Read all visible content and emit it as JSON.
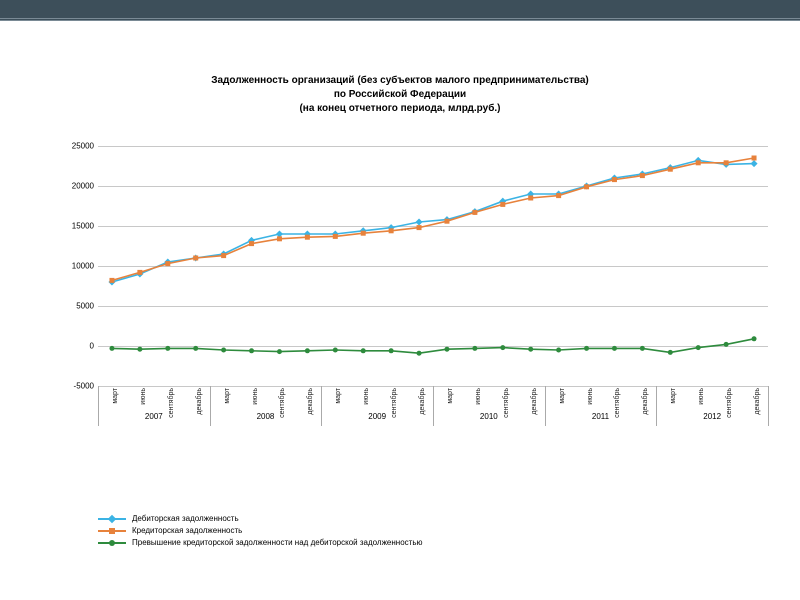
{
  "chart": {
    "type": "line",
    "title_line1": "Задолженность организаций (без субъектов малого предпринимательства)",
    "title_line2": "по Российской Федерации",
    "title_line3": "(на конец отчетного периода, млрд.руб.)",
    "title_fontsize": 10,
    "background_color": "#ffffff",
    "grid_color": "#c8c8c8",
    "ylim": [
      -5000,
      25000
    ],
    "ytick_step": 5000,
    "yticks": [
      -5000,
      0,
      5000,
      10000,
      15000,
      20000,
      25000
    ],
    "x_labels": [
      "март",
      "июнь",
      "сентябрь",
      "декабрь",
      "март",
      "июнь",
      "сентябрь",
      "декабрь",
      "март",
      "июнь",
      "сентябрь",
      "декабрь",
      "март",
      "июнь",
      "сентябрь",
      "декабрь",
      "март",
      "июнь",
      "сентябрь",
      "декабрь",
      "март",
      "июнь",
      "сентябрь",
      "декабрь"
    ],
    "years": [
      "2007",
      "2008",
      "2009",
      "2010",
      "2011",
      "2012"
    ],
    "year_ticks_per": 4,
    "series": [
      {
        "name": "Дебиторская задолженность",
        "color": "#3bb3e4",
        "marker": "diamond",
        "values": [
          8000,
          9000,
          10500,
          11000,
          11500,
          13200,
          14000,
          14000,
          14000,
          14400,
          14800,
          15500,
          15800,
          16800,
          18100,
          19000,
          19000,
          20000,
          21000,
          21500,
          22300,
          23200,
          22700,
          22800
        ]
      },
      {
        "name": "Кредиторская задолженность",
        "color": "#e7823c",
        "marker": "square",
        "values": [
          8200,
          9200,
          10300,
          11000,
          11300,
          12800,
          13400,
          13600,
          13700,
          14100,
          14400,
          14800,
          15600,
          16700,
          17700,
          18500,
          18800,
          19900,
          20800,
          21300,
          22100,
          22900,
          22900,
          23500
        ]
      },
      {
        "name": "Превышение кредиторской задолженности над дебиторской задолженностью",
        "color": "#2e8b3d",
        "marker": "circle",
        "values": [
          -300,
          -400,
          -300,
          -300,
          -500,
          -600,
          -700,
          -600,
          -500,
          -600,
          -600,
          -900,
          -400,
          -300,
          -200,
          -400,
          -500,
          -300,
          -300,
          -300,
          -800,
          -200,
          200,
          900
        ]
      }
    ],
    "label_fontsize": 8,
    "line_width": 1.6,
    "marker_size": 5
  },
  "topbar": {
    "color": "#3d4f5a"
  }
}
